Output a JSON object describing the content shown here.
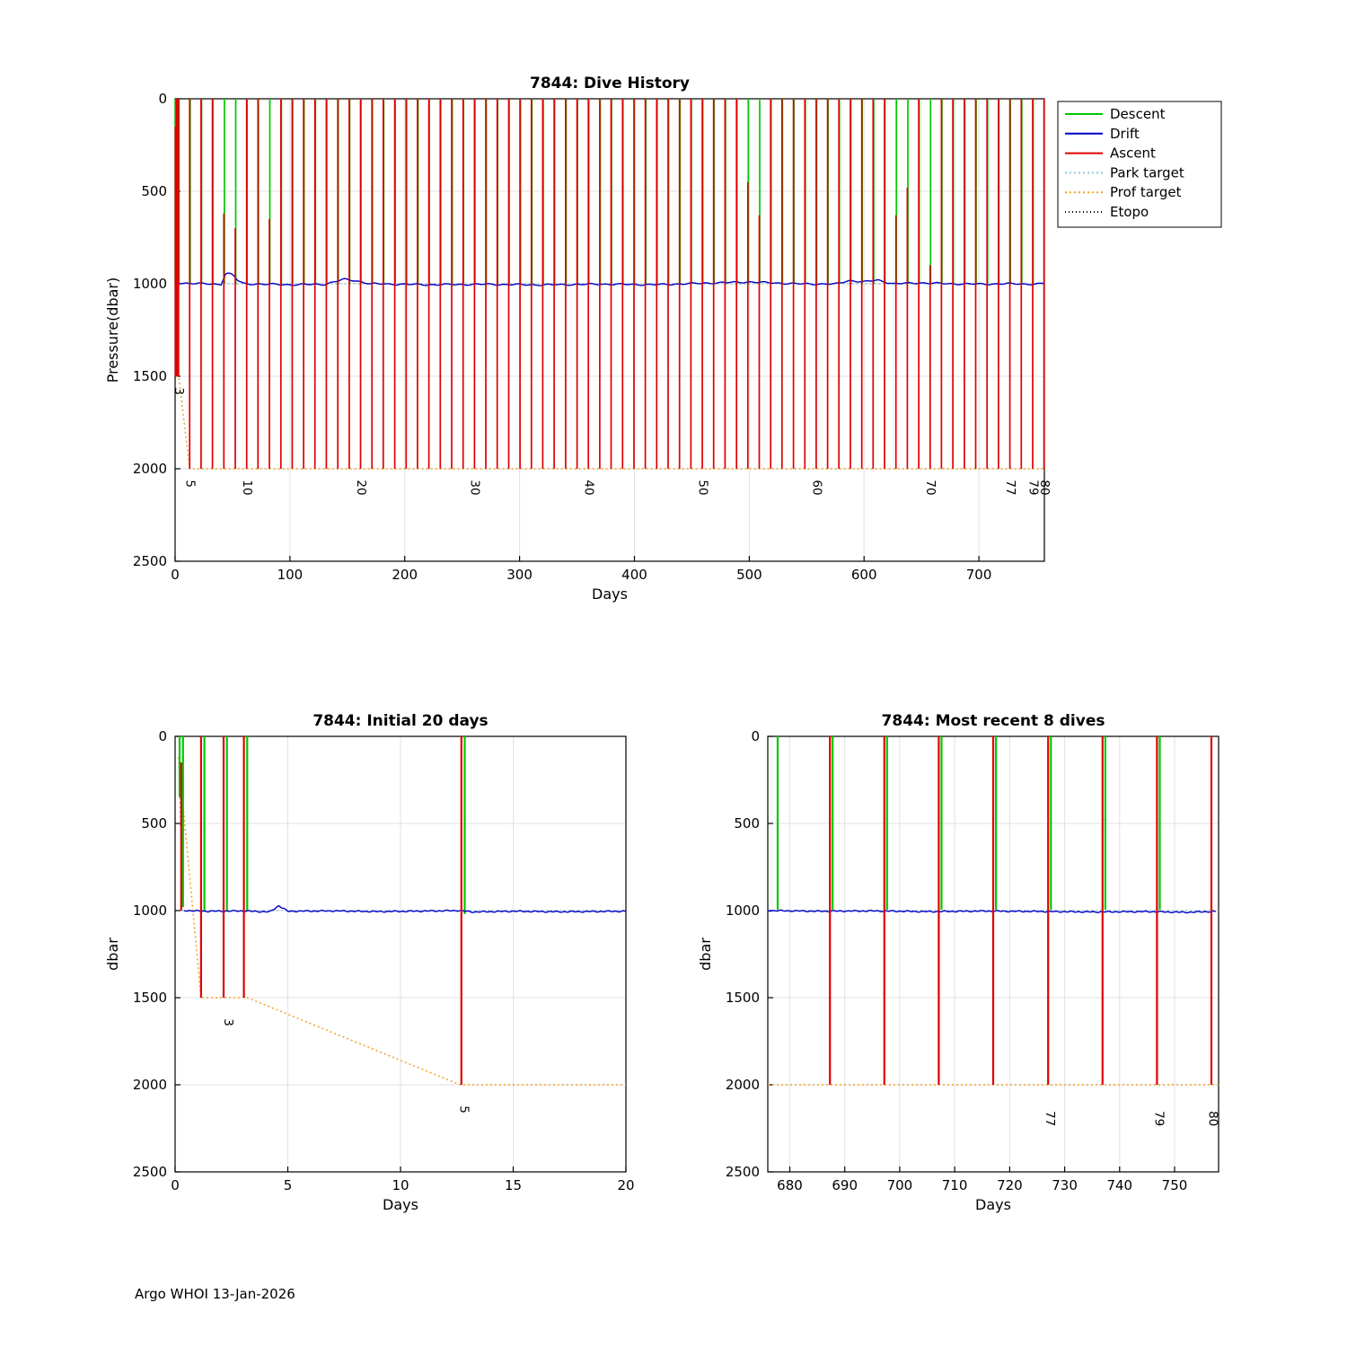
{
  "page": {
    "footer": "Argo WHOI 13-Jan-2026"
  },
  "chart_data": [
    {
      "type": "line",
      "title": "7844: Dive History",
      "xlabel": "Days",
      "ylabel": "Pressure(dbar)",
      "xlim": [
        0,
        757
      ],
      "ylim": [
        0,
        2500
      ],
      "y_reversed": true,
      "xticks": [
        0,
        100,
        200,
        300,
        400,
        500,
        600,
        700
      ],
      "yticks": [
        0,
        500,
        1000,
        1500,
        2000,
        2500
      ],
      "colors": {
        "descent": "#00c800",
        "ascent": "#e00000",
        "drift": "#0000c8",
        "park": "#8ec6d8",
        "prof": "#f0a028",
        "etopo": "#000000"
      },
      "drift_depth": 1000,
      "legend": {
        "items": [
          {
            "label": "Descent",
            "color": "#00c800",
            "dash": ""
          },
          {
            "label": "Drift",
            "color": "#0000c8",
            "dash": ""
          },
          {
            "label": "Ascent",
            "color": "#e00000",
            "dash": ""
          },
          {
            "label": "Park target",
            "color": "#8ec6d8",
            "dash": "2 3"
          },
          {
            "label": "Prof target",
            "color": "#f0a028",
            "dash": "2 3"
          },
          {
            "label": "Etopo",
            "color": "#000000",
            "dash": "1 3"
          }
        ]
      },
      "series": [
        {
          "name": "park-target",
          "color": "#8ec6d8",
          "dash": "2 3",
          "width": 1.5,
          "z": 0,
          "points": [
            [
              0.12,
              140
            ],
            [
              0.45,
              1000
            ],
            [
              757,
              1000
            ]
          ]
        },
        {
          "name": "prof-target",
          "color": "#f0a028",
          "dash": "2 3",
          "width": 1.5,
          "z": 0,
          "points": [
            [
              0.12,
              140
            ],
            [
              1.1,
              1500
            ],
            [
              3.1,
              1500
            ],
            [
              12.7,
              2000
            ],
            [
              757,
              2000
            ]
          ]
        },
        {
          "name": "etopo",
          "color": "#000000",
          "dash": "1 3",
          "width": 1.2,
          "z": 0,
          "points": []
        },
        {
          "name": "drift",
          "color": "#0000c8",
          "width": 1.4,
          "z": 2,
          "jitter": 5,
          "points": [
            [
              0.4,
              995
            ],
            [
              40,
              1003
            ],
            [
              44,
              942
            ],
            [
              50,
              950
            ],
            [
              55,
              985
            ],
            [
              60,
              1000
            ],
            [
              100,
              1005
            ],
            [
              130,
              1003
            ],
            [
              147,
              976
            ],
            [
              158,
              984
            ],
            [
              170,
              1000
            ],
            [
              220,
              1005
            ],
            [
              270,
              1003
            ],
            [
              320,
              1006
            ],
            [
              370,
              1002
            ],
            [
              420,
              1005
            ],
            [
              460,
              997
            ],
            [
              500,
              990
            ],
            [
              540,
              1000
            ],
            [
              575,
              1002
            ],
            [
              587,
              982
            ],
            [
              600,
              990
            ],
            [
              612,
              980
            ],
            [
              625,
              1000
            ],
            [
              650,
              995
            ],
            [
              675,
              1000
            ],
            [
              700,
              1002
            ],
            [
              725,
              1000
            ],
            [
              750,
              1002
            ],
            [
              756.8,
              998
            ]
          ]
        }
      ],
      "green_starts": [
        0.12
      ],
      "dives": [
        [
          0.25,
          1500,
          "",
          150
        ],
        [
          1.1,
          1500,
          "",
          0
        ],
        [
          2.1,
          1500,
          "",
          0
        ],
        [
          3.0,
          1500,
          "3",
          0
        ],
        [
          12.7,
          2000,
          "5",
          0
        ],
        [
          22.6,
          2000,
          "",
          0
        ],
        [
          32.5,
          2000,
          "",
          0
        ],
        [
          42.5,
          2000,
          "",
          620
        ],
        [
          52.4,
          2000,
          "",
          700
        ],
        [
          62.3,
          2000,
          "10",
          0
        ],
        [
          72.2,
          2000,
          "",
          0
        ],
        [
          82.1,
          2000,
          "",
          650
        ],
        [
          92.1,
          2000,
          "",
          0
        ],
        [
          102.0,
          2000,
          "",
          0
        ],
        [
          111.9,
          2000,
          "",
          0
        ],
        [
          121.8,
          2000,
          "",
          0
        ],
        [
          131.7,
          2000,
          "",
          0
        ],
        [
          141.7,
          2000,
          "",
          0
        ],
        [
          151.6,
          2000,
          "",
          0
        ],
        [
          161.5,
          2000,
          "20",
          0
        ],
        [
          171.4,
          2000,
          "",
          0
        ],
        [
          181.3,
          2000,
          "",
          0
        ],
        [
          191.3,
          2000,
          "",
          0
        ],
        [
          201.2,
          2000,
          "",
          0
        ],
        [
          211.1,
          2000,
          "",
          0
        ],
        [
          221.0,
          2000,
          "",
          0
        ],
        [
          230.9,
          2000,
          "",
          0
        ],
        [
          240.9,
          2000,
          "",
          0
        ],
        [
          250.8,
          2000,
          "",
          0
        ],
        [
          260.7,
          2000,
          "30",
          0
        ],
        [
          270.6,
          2000,
          "",
          0
        ],
        [
          280.5,
          2000,
          "",
          0
        ],
        [
          290.5,
          2000,
          "",
          0
        ],
        [
          300.4,
          2000,
          "",
          0
        ],
        [
          310.3,
          2000,
          "",
          0
        ],
        [
          320.2,
          2000,
          "",
          0
        ],
        [
          330.1,
          2000,
          "",
          0
        ],
        [
          340.1,
          2000,
          "",
          0
        ],
        [
          350.0,
          2000,
          "",
          0
        ],
        [
          359.9,
          2000,
          "40",
          0
        ],
        [
          369.8,
          2000,
          "",
          0
        ],
        [
          379.7,
          2000,
          "",
          0
        ],
        [
          389.7,
          2000,
          "",
          0
        ],
        [
          399.6,
          2000,
          "",
          0
        ],
        [
          409.5,
          2000,
          "",
          0
        ],
        [
          419.4,
          2000,
          "",
          0
        ],
        [
          429.3,
          2000,
          "",
          0
        ],
        [
          439.3,
          2000,
          "",
          0
        ],
        [
          449.2,
          2000,
          "",
          0
        ],
        [
          459.1,
          2000,
          "50",
          0
        ],
        [
          469.0,
          2000,
          "",
          0
        ],
        [
          478.9,
          2000,
          "",
          0
        ],
        [
          488.9,
          2000,
          "",
          0
        ],
        [
          498.8,
          2000,
          "",
          450
        ],
        [
          508.7,
          2000,
          "",
          630
        ],
        [
          518.6,
          2000,
          "",
          0
        ],
        [
          528.5,
          2000,
          "",
          0
        ],
        [
          538.5,
          2000,
          "",
          0
        ],
        [
          548.4,
          2000,
          "",
          0
        ],
        [
          558.3,
          2000,
          "60",
          0
        ],
        [
          568.2,
          2000,
          "",
          0
        ],
        [
          578.1,
          2000,
          "",
          0
        ],
        [
          588.1,
          2000,
          "",
          0
        ],
        [
          598.0,
          2000,
          "",
          0
        ],
        [
          607.9,
          2000,
          "",
          0
        ],
        [
          617.8,
          2000,
          "",
          0
        ],
        [
          627.7,
          2000,
          "",
          630
        ],
        [
          637.7,
          2000,
          "",
          480
        ],
        [
          647.6,
          2000,
          "",
          0
        ],
        [
          657.5,
          2000,
          "70",
          900
        ],
        [
          667.4,
          2000,
          "",
          0
        ],
        [
          677.3,
          2000,
          "",
          0
        ],
        [
          687.3,
          2000,
          "",
          0
        ],
        [
          697.2,
          2000,
          "",
          0
        ],
        [
          707.1,
          2000,
          "",
          0
        ],
        [
          717.0,
          2000,
          "",
          0
        ],
        [
          727.0,
          2000,
          "77",
          0
        ],
        [
          736.9,
          2000,
          "",
          0
        ],
        [
          746.8,
          2000,
          "79",
          0
        ],
        [
          756.7,
          2000,
          "80",
          0
        ]
      ]
    },
    {
      "type": "line",
      "title": "7844: Initial 20 days",
      "xlabel": "Days",
      "ylabel": "dbar",
      "xlim": [
        0,
        20
      ],
      "ylim": [
        0,
        2500
      ],
      "y_reversed": true,
      "xticks": [
        0,
        5,
        10,
        15,
        20
      ],
      "yticks": [
        0,
        500,
        1000,
        1500,
        2000,
        2500
      ],
      "colors": {
        "descent": "#00c800",
        "ascent": "#e00000",
        "drift": "#0000c8",
        "park": "#8ec6d8",
        "prof": "#f0a028"
      },
      "series": [
        {
          "name": "park-target",
          "color": "#8ec6d8",
          "dash": "2 3",
          "width": 1.5,
          "z": 0,
          "points": [
            [
              0.15,
              120
            ],
            [
              0.35,
              1000
            ],
            [
              20,
              1000
            ]
          ]
        },
        {
          "name": "prof-target",
          "color": "#f0a028",
          "dash": "2 3",
          "width": 1.5,
          "z": 0,
          "points": [
            [
              0.15,
              120
            ],
            [
              1.15,
              1500
            ],
            [
              3.2,
              1500
            ],
            [
              12.65,
              2000
            ],
            [
              20,
              2000
            ]
          ]
        },
        {
          "name": "drift",
          "color": "#0000c8",
          "width": 1.4,
          "z": 2,
          "jitter": 4,
          "points": [
            [
              0.4,
              1000
            ],
            [
              1.5,
              1004
            ],
            [
              3,
              1002
            ],
            [
              4.2,
              1008
            ],
            [
              4.6,
              972
            ],
            [
              5,
              1004
            ],
            [
              7,
              1002
            ],
            [
              9,
              1006
            ],
            [
              11,
              1003
            ],
            [
              12.6,
              1000
            ],
            [
              13.2,
              1008
            ],
            [
              15,
              1004
            ],
            [
              17,
              1007
            ],
            [
              20,
              1004
            ]
          ]
        }
      ],
      "greens": [
        [
          0.2,
          0,
          350
        ],
        [
          0.35,
          0,
          980
        ],
        [
          1.3,
          0,
          1000
        ],
        [
          2.3,
          0,
          1000
        ],
        [
          3.2,
          0,
          1000
        ],
        [
          12.85,
          0,
          1020
        ]
      ],
      "reds": [
        [
          0.27,
          150,
          1000
        ],
        [
          1.15,
          0,
          1500
        ],
        [
          2.15,
          0,
          1500
        ],
        [
          3.05,
          0,
          1500
        ],
        [
          12.7,
          0,
          2000
        ]
      ],
      "labels": [
        [
          "3",
          2.35,
          1620
        ],
        [
          "5",
          12.8,
          2120
        ]
      ]
    },
    {
      "type": "line",
      "title": "7844: Most recent 8 dives",
      "xlabel": "Days",
      "ylabel": "dbar",
      "xlim": [
        676,
        758
      ],
      "ylim": [
        0,
        2500
      ],
      "y_reversed": true,
      "xticks": [
        680,
        690,
        700,
        710,
        720,
        730,
        740,
        750
      ],
      "yticks": [
        0,
        500,
        1000,
        1500,
        2000,
        2500
      ],
      "colors": {
        "descent": "#00c800",
        "ascent": "#e00000",
        "drift": "#0000c8",
        "park": "#8ec6d8",
        "prof": "#f0a028"
      },
      "series": [
        {
          "name": "park-target",
          "color": "#8ec6d8",
          "dash": "2 3",
          "width": 1.5,
          "z": 0,
          "points": [
            [
              676,
              1000
            ],
            [
              758,
              1000
            ]
          ]
        },
        {
          "name": "prof-target",
          "color": "#f0a028",
          "dash": "2 3",
          "width": 1.5,
          "z": 0,
          "points": [
            [
              676,
              2000
            ],
            [
              758,
              2000
            ]
          ]
        },
        {
          "name": "drift",
          "color": "#0000c8",
          "width": 1.4,
          "z": 2,
          "jitter": 4,
          "points": [
            [
              676,
              1000
            ],
            [
              685,
              1004
            ],
            [
              695,
              1002
            ],
            [
              705,
              1006
            ],
            [
              715,
              1003
            ],
            [
              725,
              1005
            ],
            [
              735,
              1008
            ],
            [
              745,
              1006
            ],
            [
              752,
              1010
            ],
            [
              757.5,
              1005
            ]
          ]
        }
      ],
      "greens": [
        [
          677.8,
          0,
          995
        ],
        [
          687.8,
          0,
          995
        ],
        [
          697.7,
          0,
          995
        ],
        [
          707.6,
          0,
          995
        ],
        [
          717.5,
          0,
          995
        ],
        [
          727.5,
          0,
          995
        ],
        [
          737.4,
          0,
          995
        ],
        [
          747.3,
          0,
          995
        ]
      ],
      "reds": [
        [
          687.3,
          0,
          2000
        ],
        [
          697.2,
          0,
          2000
        ],
        [
          707.1,
          0,
          2000
        ],
        [
          717.0,
          0,
          2000
        ],
        [
          727.0,
          0,
          2000
        ],
        [
          736.9,
          0,
          2000
        ],
        [
          746.8,
          0,
          2000
        ],
        [
          756.7,
          0,
          2000
        ]
      ],
      "labels": [
        [
          "77",
          727.3,
          2150
        ],
        [
          "79",
          747.1,
          2150
        ],
        [
          "80",
          756.9,
          2150
        ]
      ]
    }
  ]
}
